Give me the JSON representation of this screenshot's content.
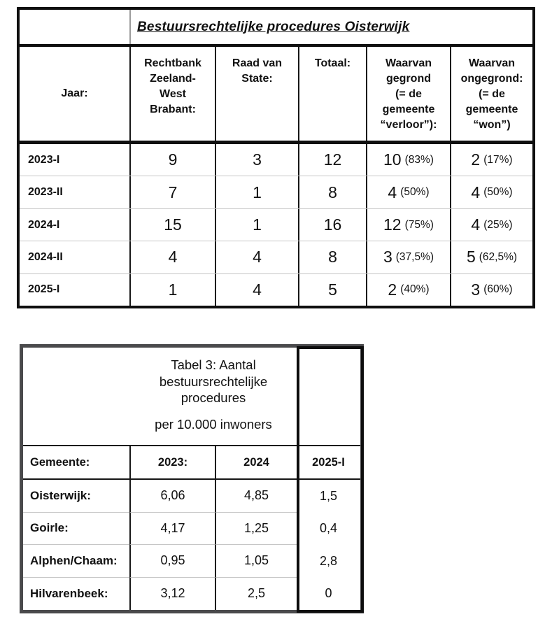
{
  "top_table": {
    "title": "Bestuursrechtelijke procedures Oisterwijk",
    "headers": {
      "jaar": "Jaar:",
      "rechtbank": "Rechtbank\nZeeland-\nWest\nBrabant:",
      "raad": "Raad van\nState:",
      "totaal": "Totaal:",
      "gegrond": "Waarvan\ngegrond\n(= de\ngemeente\n“verloor”):",
      "ongegrond": "Waarvan\nongegrond:\n(= de\ngemeente\n“won”)"
    },
    "rows": [
      {
        "jaar": "2023-I",
        "rechtbank": "9",
        "raad": "3",
        "totaal": "12",
        "gegrond_n": "10",
        "gegrond_pct": "(83%)",
        "ongegrond_n": "2",
        "ongegrond_pct": "(17%)"
      },
      {
        "jaar": "2023-II",
        "rechtbank": "7",
        "raad": "1",
        "totaal": "8",
        "gegrond_n": "4",
        "gegrond_pct": "(50%)",
        "ongegrond_n": "4",
        "ongegrond_pct": "(50%)"
      },
      {
        "jaar": "2024-I",
        "rechtbank": "15",
        "raad": "1",
        "totaal": "16",
        "gegrond_n": "12",
        "gegrond_pct": "(75%)",
        "ongegrond_n": "4",
        "ongegrond_pct": "(25%)"
      },
      {
        "jaar": "2024-II",
        "rechtbank": "4",
        "raad": "4",
        "totaal": "8",
        "gegrond_n": "3",
        "gegrond_pct": "(37,5%)",
        "ongegrond_n": "5",
        "ongegrond_pct": "(62,5%)"
      },
      {
        "jaar": "2025-I",
        "rechtbank": "1",
        "raad": "4",
        "totaal": "5",
        "gegrond_n": "2",
        "gegrond_pct": "(40%)",
        "ongegrond_n": "3",
        "ongegrond_pct": "(60%)"
      }
    ]
  },
  "bottom_table": {
    "title": "Tabel 3: Aantal\nbestuursrechtelijke\nprocedures",
    "subtitle": "per 10.000 inwoners",
    "headers": {
      "gemeente": "Gemeente:",
      "y2023": "2023:",
      "y2024": "2024",
      "y2025": "2025-I"
    },
    "rows": [
      {
        "gemeente": "Oisterwijk:",
        "y2023": "6,06",
        "y2024": "4,85",
        "y2025": "1,5"
      },
      {
        "gemeente": "Goirle:",
        "y2023": "4,17",
        "y2024": "1,25",
        "y2025": "0,4"
      },
      {
        "gemeente": "Alphen/Chaam:",
        "y2023": "0,95",
        "y2024": "1,05",
        "y2025": "2,8"
      },
      {
        "gemeente": "Hilvarenbeek:",
        "y2023": "3,12",
        "y2024": "2,5",
        "y2025": "0"
      }
    ]
  },
  "colors": {
    "table_border_black": "#0f0f0f",
    "table_border_gray": "#4a4a4c",
    "row_divider_gray": "#c6c6c6",
    "text": "#111111"
  }
}
